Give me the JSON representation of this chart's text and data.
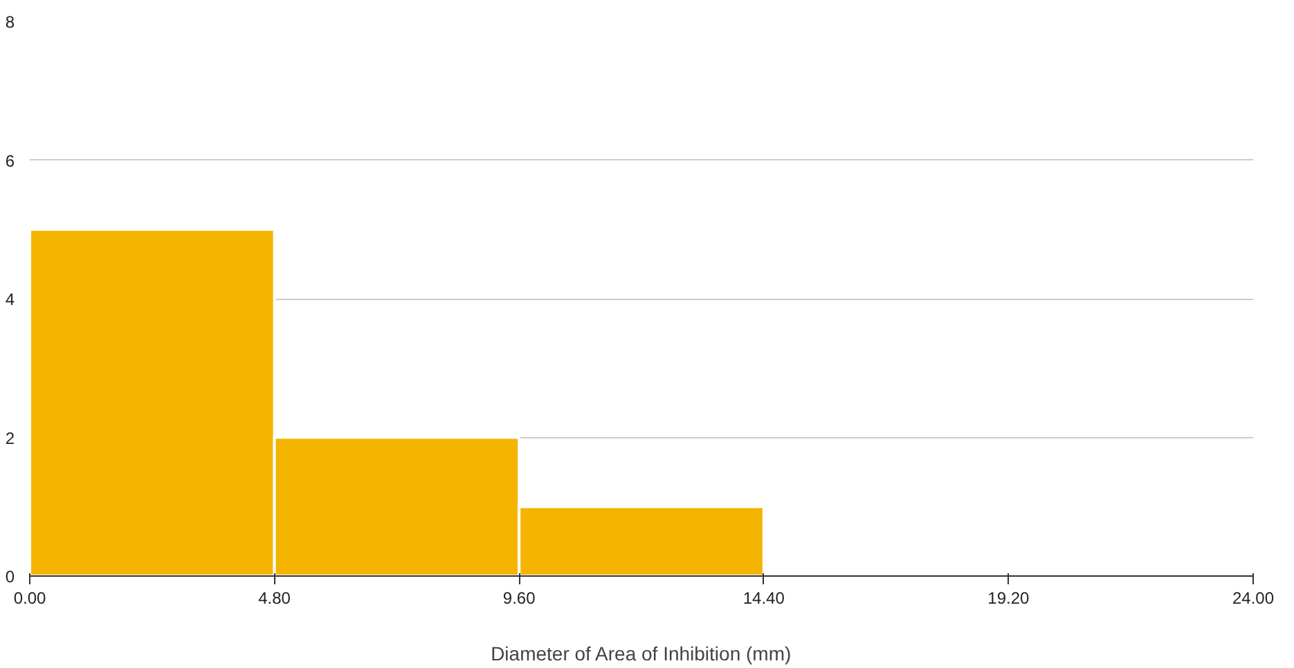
{
  "chart_data": {
    "type": "histogram",
    "xlabel": "Diameter of Area of Inhibition (mm)",
    "bins": [
      0,
      4.8,
      9.6,
      14.4,
      19.2,
      24
    ],
    "values": [
      5,
      2,
      1,
      0,
      0
    ],
    "color": "#f4b400",
    "xlim": [
      0,
      24
    ],
    "xticks": [
      {
        "value": 0,
        "label": "0.00"
      },
      {
        "value": 4.8,
        "label": "4.80"
      },
      {
        "value": 9.6,
        "label": "9.60"
      },
      {
        "value": 14.4,
        "label": "14.40"
      },
      {
        "value": 19.2,
        "label": "19.20"
      },
      {
        "value": 24,
        "label": "24.00"
      }
    ],
    "ylim": [
      0,
      8
    ],
    "yticks": [
      0,
      2,
      4,
      6,
      8
    ],
    "grid": "y"
  }
}
